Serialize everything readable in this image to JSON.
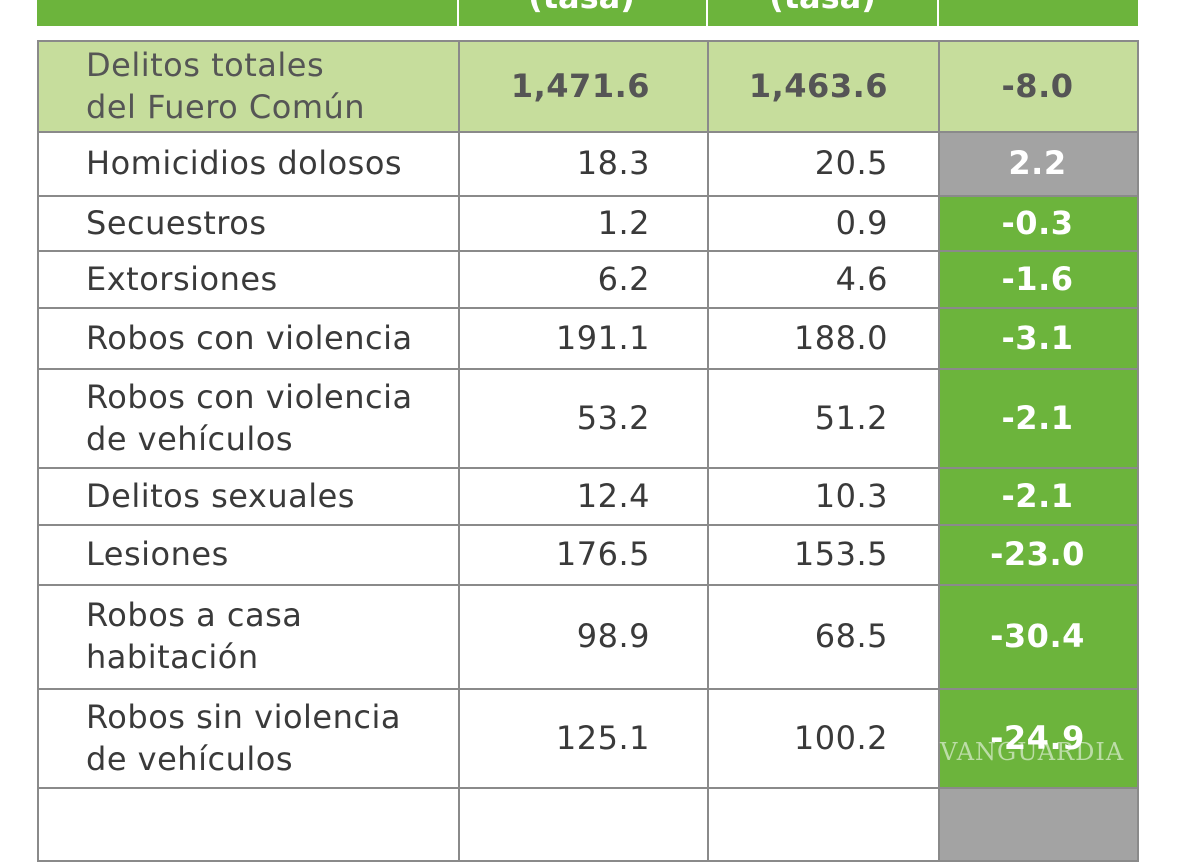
{
  "header": {
    "cols": [
      "(tasa)",
      "(tasa)"
    ]
  },
  "table": {
    "rows": [
      {
        "label": [
          "Delitos totales",
          "del Fuero Común"
        ],
        "a": "1,471.6",
        "b": "1,463.6",
        "diff": "-8.0",
        "total": true,
        "color": "#c6dd9c"
      },
      {
        "label": [
          "Homicidios dolosos"
        ],
        "a": "18.3",
        "b": "20.5",
        "diff": "2.2",
        "color": "#a3a3a3"
      },
      {
        "label": [
          "Secuestros"
        ],
        "a": "1.2",
        "b": "0.9",
        "diff": "-0.3",
        "color": "#6cb43c"
      },
      {
        "label": [
          "Extorsiones"
        ],
        "a": "6.2",
        "b": "4.6",
        "diff": "-1.6",
        "color": "#6cb43c"
      },
      {
        "label": [
          "Robos con violencia"
        ],
        "a": "191.1",
        "b": "188.0",
        "diff": "-3.1",
        "color": "#6cb43c"
      },
      {
        "label": [
          "Robos con violencia",
          "de vehículos"
        ],
        "a": "53.2",
        "b": "51.2",
        "diff": "-2.1",
        "color": "#6cb43c"
      },
      {
        "label": [
          "Delitos sexuales"
        ],
        "a": "12.4",
        "b": "10.3",
        "diff": "-2.1",
        "color": "#6cb43c"
      },
      {
        "label": [
          "Lesiones"
        ],
        "a": "176.5",
        "b": "153.5",
        "diff": "-23.0",
        "color": "#6cb43c"
      },
      {
        "label": [
          "Robos a casa",
          "habitación"
        ],
        "a": "98.9",
        "b": "68.5",
        "diff": "-30.4",
        "color": "#6cb43c"
      },
      {
        "label": [
          "Robos sin violencia",
          "de vehículos"
        ],
        "a": "125.1",
        "b": "100.2",
        "diff": "-24.9",
        "color": "#6cb43c"
      }
    ]
  },
  "watermark": "VANGUARDIA"
}
